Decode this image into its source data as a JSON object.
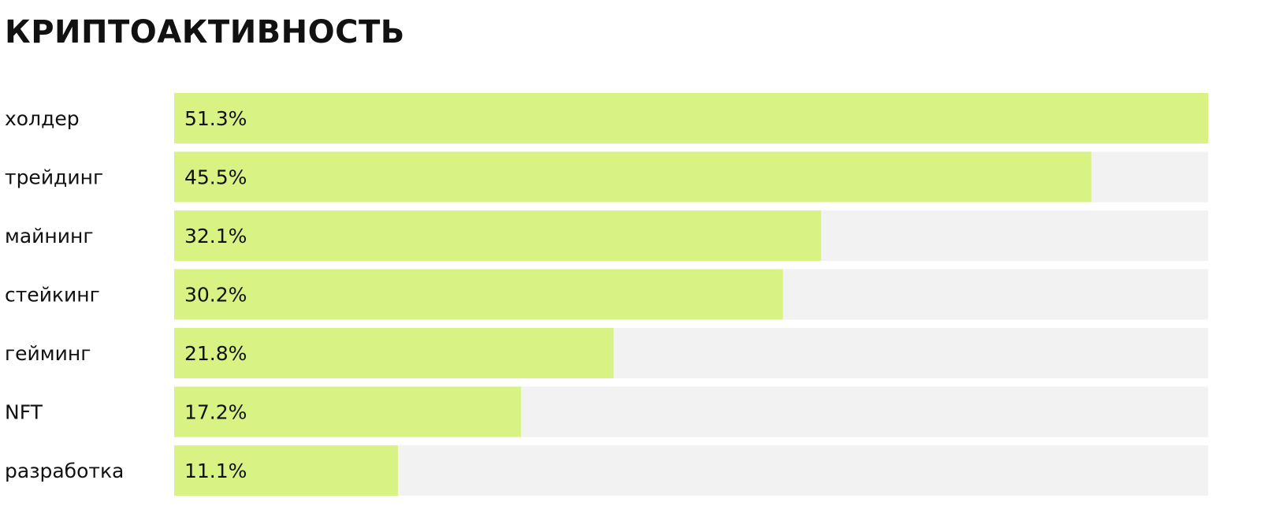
{
  "chart_data": {
    "type": "bar",
    "title": "КРИПТОАКТИВНОСТЬ",
    "categories": [
      "холдер",
      "трейдинг",
      "майнинг",
      "стейкинг",
      "гейминг",
      "NFT",
      "разработка"
    ],
    "values": [
      51.3,
      45.5,
      32.1,
      30.2,
      21.8,
      17.2,
      11.1
    ],
    "value_labels": [
      "51.3%",
      "45.5%",
      "32.1%",
      "30.2%",
      "21.8%",
      "17.2%",
      "11.1%"
    ],
    "color": "#d8f283",
    "track_color": "#f2f2f2"
  }
}
